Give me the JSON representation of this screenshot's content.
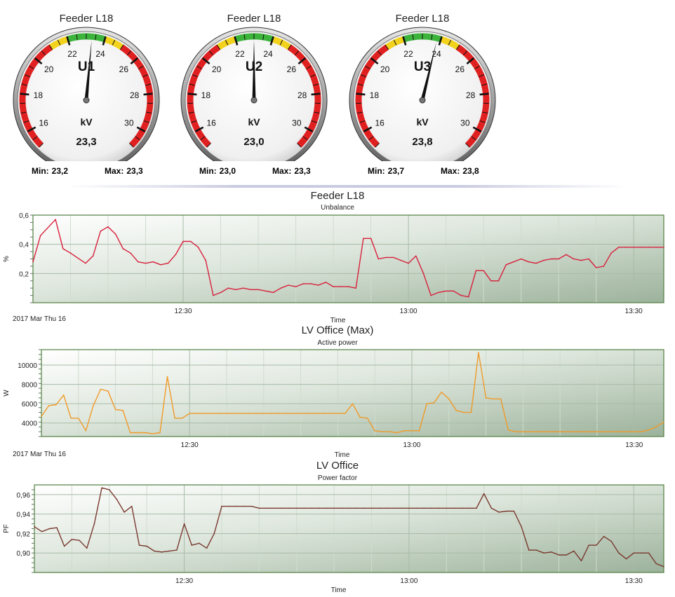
{
  "gauges": [
    {
      "title": "Feeder L18",
      "label": "U1",
      "unit": "kV",
      "value": 23.3,
      "value_text": "23,3",
      "min_label": "Min:",
      "min": "23,2",
      "max_label": "Max:",
      "max": "23,3"
    },
    {
      "title": "Feeder L18",
      "label": "U2",
      "unit": "kV",
      "value": 23.0,
      "value_text": "23,0",
      "min_label": "Min:",
      "min": "23,0",
      "max_label": "Max:",
      "max": "23,3"
    },
    {
      "title": "Feeder L18",
      "label": "U3",
      "unit": "kV",
      "value": 23.8,
      "value_text": "23,8",
      "min_label": "Min:",
      "min": "23,7",
      "max_label": "Max:",
      "max": "23,8"
    }
  ],
  "gauge_scale": {
    "min": 15,
    "max": 31,
    "tick_labels": [
      "16",
      "18",
      "20",
      "22",
      "24",
      "26",
      "28",
      "30"
    ],
    "zones": [
      {
        "from": 15,
        "to": 21,
        "color": "#e02020"
      },
      {
        "from": 21,
        "to": 22,
        "color": "#f2d21c"
      },
      {
        "from": 22,
        "to": 24,
        "color": "#3cb43c"
      },
      {
        "from": 24,
        "to": 25,
        "color": "#f2d21c"
      },
      {
        "from": 25,
        "to": 31,
        "color": "#e02020"
      }
    ]
  },
  "chart_data": [
    {
      "type": "line",
      "title": "Feeder L18",
      "subtitle": "Unbalance",
      "xlabel": "Time",
      "ylabel": "%",
      "date_label": "2017 Mar Thu 16",
      "color": "#d8203c",
      "x_range": [
        "12:10",
        "13:34"
      ],
      "x_ticks": [
        "12:30",
        "13:00",
        "13:30"
      ],
      "ylim": [
        0,
        0.6
      ],
      "y_ticks": [
        "0,6",
        "0,4",
        "0,2"
      ],
      "y_tick_values": [
        0.6,
        0.4,
        0.2
      ],
      "x": [
        "12:10",
        "12:11",
        "12:13",
        "12:14",
        "12:15",
        "12:17",
        "12:18",
        "12:19",
        "12:20",
        "12:21",
        "12:22",
        "12:23",
        "12:24",
        "12:25",
        "12:26",
        "12:27",
        "12:28",
        "12:29",
        "12:30",
        "12:31",
        "12:32",
        "12:33",
        "12:34",
        "12:35",
        "12:36",
        "12:37",
        "12:38",
        "12:39",
        "12:40",
        "12:41",
        "12:42",
        "12:43",
        "12:44",
        "12:45",
        "12:46",
        "12:47",
        "12:48",
        "12:49",
        "12:50",
        "12:51",
        "12:52",
        "12:53",
        "12:54",
        "12:55",
        "12:56",
        "12:57",
        "12:58",
        "12:59",
        "13:00",
        "13:01",
        "13:02",
        "13:03",
        "13:04",
        "13:05",
        "13:06",
        "13:07",
        "13:08",
        "13:09",
        "13:10",
        "13:11",
        "13:12",
        "13:13",
        "13:14",
        "13:15",
        "13:16",
        "13:17",
        "13:18",
        "13:19",
        "13:20",
        "13:21",
        "13:22",
        "13:23",
        "13:24",
        "13:25",
        "13:26",
        "13:27",
        "13:28",
        "13:29",
        "13:30",
        "13:31",
        "13:32",
        "13:33",
        "13:34"
      ],
      "values": [
        0.28,
        0.46,
        0.57,
        0.37,
        0.34,
        0.27,
        0.32,
        0.49,
        0.52,
        0.47,
        0.37,
        0.34,
        0.28,
        0.27,
        0.28,
        0.26,
        0.27,
        0.33,
        0.42,
        0.42,
        0.38,
        0.29,
        0.05,
        0.07,
        0.1,
        0.09,
        0.1,
        0.09,
        0.09,
        0.08,
        0.07,
        0.1,
        0.12,
        0.11,
        0.13,
        0.13,
        0.12,
        0.14,
        0.11,
        0.11,
        0.11,
        0.1,
        0.44,
        0.44,
        0.3,
        0.31,
        0.31,
        0.29,
        0.27,
        0.32,
        0.2,
        0.05,
        0.07,
        0.08,
        0.08,
        0.05,
        0.04,
        0.22,
        0.22,
        0.15,
        0.15,
        0.26,
        0.28,
        0.3,
        0.28,
        0.27,
        0.29,
        0.3,
        0.3,
        0.33,
        0.3,
        0.29,
        0.3,
        0.24,
        0.25,
        0.34,
        0.38,
        0.38,
        0.38,
        0.38,
        0.38,
        0.38,
        0.38
      ]
    },
    {
      "type": "line",
      "title": "LV Office (Max)",
      "subtitle": "Active power",
      "xlabel": "Time",
      "ylabel": "W",
      "date_label": "2017 Mar Thu 16",
      "color": "#f09a28",
      "x_range": [
        "12:10",
        "13:34"
      ],
      "x_ticks": [
        "12:30",
        "13:00",
        "13:30"
      ],
      "ylim": [
        2600,
        11600
      ],
      "y_ticks": [
        "10000",
        "8000",
        "6000",
        "4000"
      ],
      "y_tick_values": [
        10000,
        8000,
        6000,
        4000
      ],
      "x": [
        "12:10",
        "12:11",
        "12:12",
        "12:13",
        "12:14",
        "12:15",
        "12:16",
        "12:17",
        "12:18",
        "12:19",
        "12:20",
        "12:21",
        "12:22",
        "12:23",
        "12:24",
        "12:25",
        "12:26",
        "12:27",
        "12:28",
        "12:29",
        "12:30",
        "12:31",
        "12:32",
        "12:33",
        "12:34",
        "12:35",
        "12:36",
        "12:37",
        "12:38",
        "12:39",
        "12:40",
        "12:41",
        "12:42",
        "12:43",
        "12:44",
        "12:45",
        "12:46",
        "12:47",
        "12:48",
        "12:49",
        "12:50",
        "12:51",
        "12:52",
        "12:53",
        "12:54",
        "12:55",
        "12:56",
        "12:57",
        "12:58",
        "12:59",
        "13:00",
        "13:01",
        "13:02",
        "13:03",
        "13:04",
        "13:05",
        "13:06",
        "13:07",
        "13:08",
        "13:09",
        "13:10",
        "13:11",
        "13:12",
        "13:13",
        "13:14",
        "13:15",
        "13:16",
        "13:17",
        "13:18",
        "13:19",
        "13:20",
        "13:21",
        "13:22",
        "13:23",
        "13:24",
        "13:25",
        "13:26",
        "13:27",
        "13:28",
        "13:29",
        "13:30",
        "13:31",
        "13:32",
        "13:33",
        "13:34"
      ],
      "values": [
        4700,
        5800,
        5900,
        6900,
        4500,
        4500,
        3200,
        5800,
        7500,
        7300,
        5400,
        5300,
        3000,
        3000,
        3000,
        2900,
        3000,
        8800,
        4500,
        4500,
        5000,
        5000,
        5000,
        5000,
        5000,
        5000,
        5000,
        5000,
        5000,
        5000,
        5000,
        5000,
        5000,
        5000,
        5000,
        5000,
        5000,
        5000,
        5000,
        5000,
        5000,
        5000,
        6000,
        4600,
        4500,
        3200,
        3100,
        3100,
        3000,
        3200,
        3200,
        3200,
        6000,
        6100,
        7200,
        6500,
        5300,
        5100,
        5100,
        11300,
        6600,
        6500,
        6500,
        3300,
        3100,
        3100,
        3100,
        3100,
        3100,
        3100,
        3100,
        3100,
        3100,
        3100,
        3100,
        3100,
        3100,
        3100,
        3100,
        3100,
        3100,
        3100,
        3300,
        3600,
        4100
      ]
    },
    {
      "type": "line",
      "title": "LV Office",
      "subtitle": "Power factor",
      "xlabel": "Time",
      "ylabel": "PF",
      "date_label": "",
      "color": "#7a3a30",
      "x_range": [
        "12:10",
        "13:34"
      ],
      "x_ticks": [
        "12:30",
        "13:00",
        "13:30"
      ],
      "ylim": [
        0.88,
        0.97
      ],
      "y_ticks": [
        "0,96",
        "0,94",
        "0,92",
        "0,90"
      ],
      "y_tick_values": [
        0.96,
        0.94,
        0.92,
        0.9
      ],
      "x": [
        "12:10",
        "12:11",
        "12:12",
        "12:13",
        "12:14",
        "12:15",
        "12:16",
        "12:17",
        "12:18",
        "12:19",
        "12:20",
        "12:21",
        "12:22",
        "12:23",
        "12:24",
        "12:25",
        "12:26",
        "12:27",
        "12:28",
        "12:29",
        "12:30",
        "12:31",
        "12:32",
        "12:33",
        "12:34",
        "12:35",
        "12:36",
        "12:37",
        "12:38",
        "12:39",
        "12:40",
        "12:41",
        "12:42",
        "12:43",
        "12:44",
        "12:45",
        "12:46",
        "12:47",
        "12:48",
        "12:49",
        "12:50",
        "12:51",
        "12:52",
        "12:53",
        "12:54",
        "12:55",
        "12:56",
        "12:57",
        "12:58",
        "12:59",
        "13:00",
        "13:01",
        "13:02",
        "13:03",
        "13:04",
        "13:05",
        "13:06",
        "13:07",
        "13:08",
        "13:09",
        "13:10",
        "13:11",
        "13:12",
        "13:13",
        "13:14",
        "13:15",
        "13:16",
        "13:17",
        "13:18",
        "13:19",
        "13:20",
        "13:21",
        "13:22",
        "13:23",
        "13:24",
        "13:25",
        "13:26",
        "13:27",
        "13:28",
        "13:29",
        "13:30",
        "13:31",
        "13:32",
        "13:33",
        "13:34"
      ],
      "values": [
        0.927,
        0.922,
        0.925,
        0.926,
        0.907,
        0.914,
        0.913,
        0.905,
        0.93,
        0.967,
        0.965,
        0.955,
        0.942,
        0.948,
        0.908,
        0.907,
        0.902,
        0.901,
        0.902,
        0.903,
        0.93,
        0.908,
        0.91,
        0.905,
        0.92,
        0.948,
        0.948,
        0.948,
        0.948,
        0.948,
        0.946,
        0.946,
        0.946,
        0.946,
        0.946,
        0.946,
        0.946,
        0.946,
        0.946,
        0.946,
        0.946,
        0.946,
        0.946,
        0.946,
        0.946,
        0.946,
        0.946,
        0.946,
        0.946,
        0.946,
        0.946,
        0.946,
        0.946,
        0.946,
        0.946,
        0.946,
        0.946,
        0.946,
        0.946,
        0.946,
        0.961,
        0.946,
        0.942,
        0.943,
        0.943,
        0.927,
        0.903,
        0.903,
        0.9,
        0.901,
        0.898,
        0.898,
        0.902,
        0.892,
        0.908,
        0.908,
        0.917,
        0.912,
        0.9,
        0.894,
        0.9,
        0.9,
        0.9,
        0.889,
        0.886
      ]
    }
  ]
}
